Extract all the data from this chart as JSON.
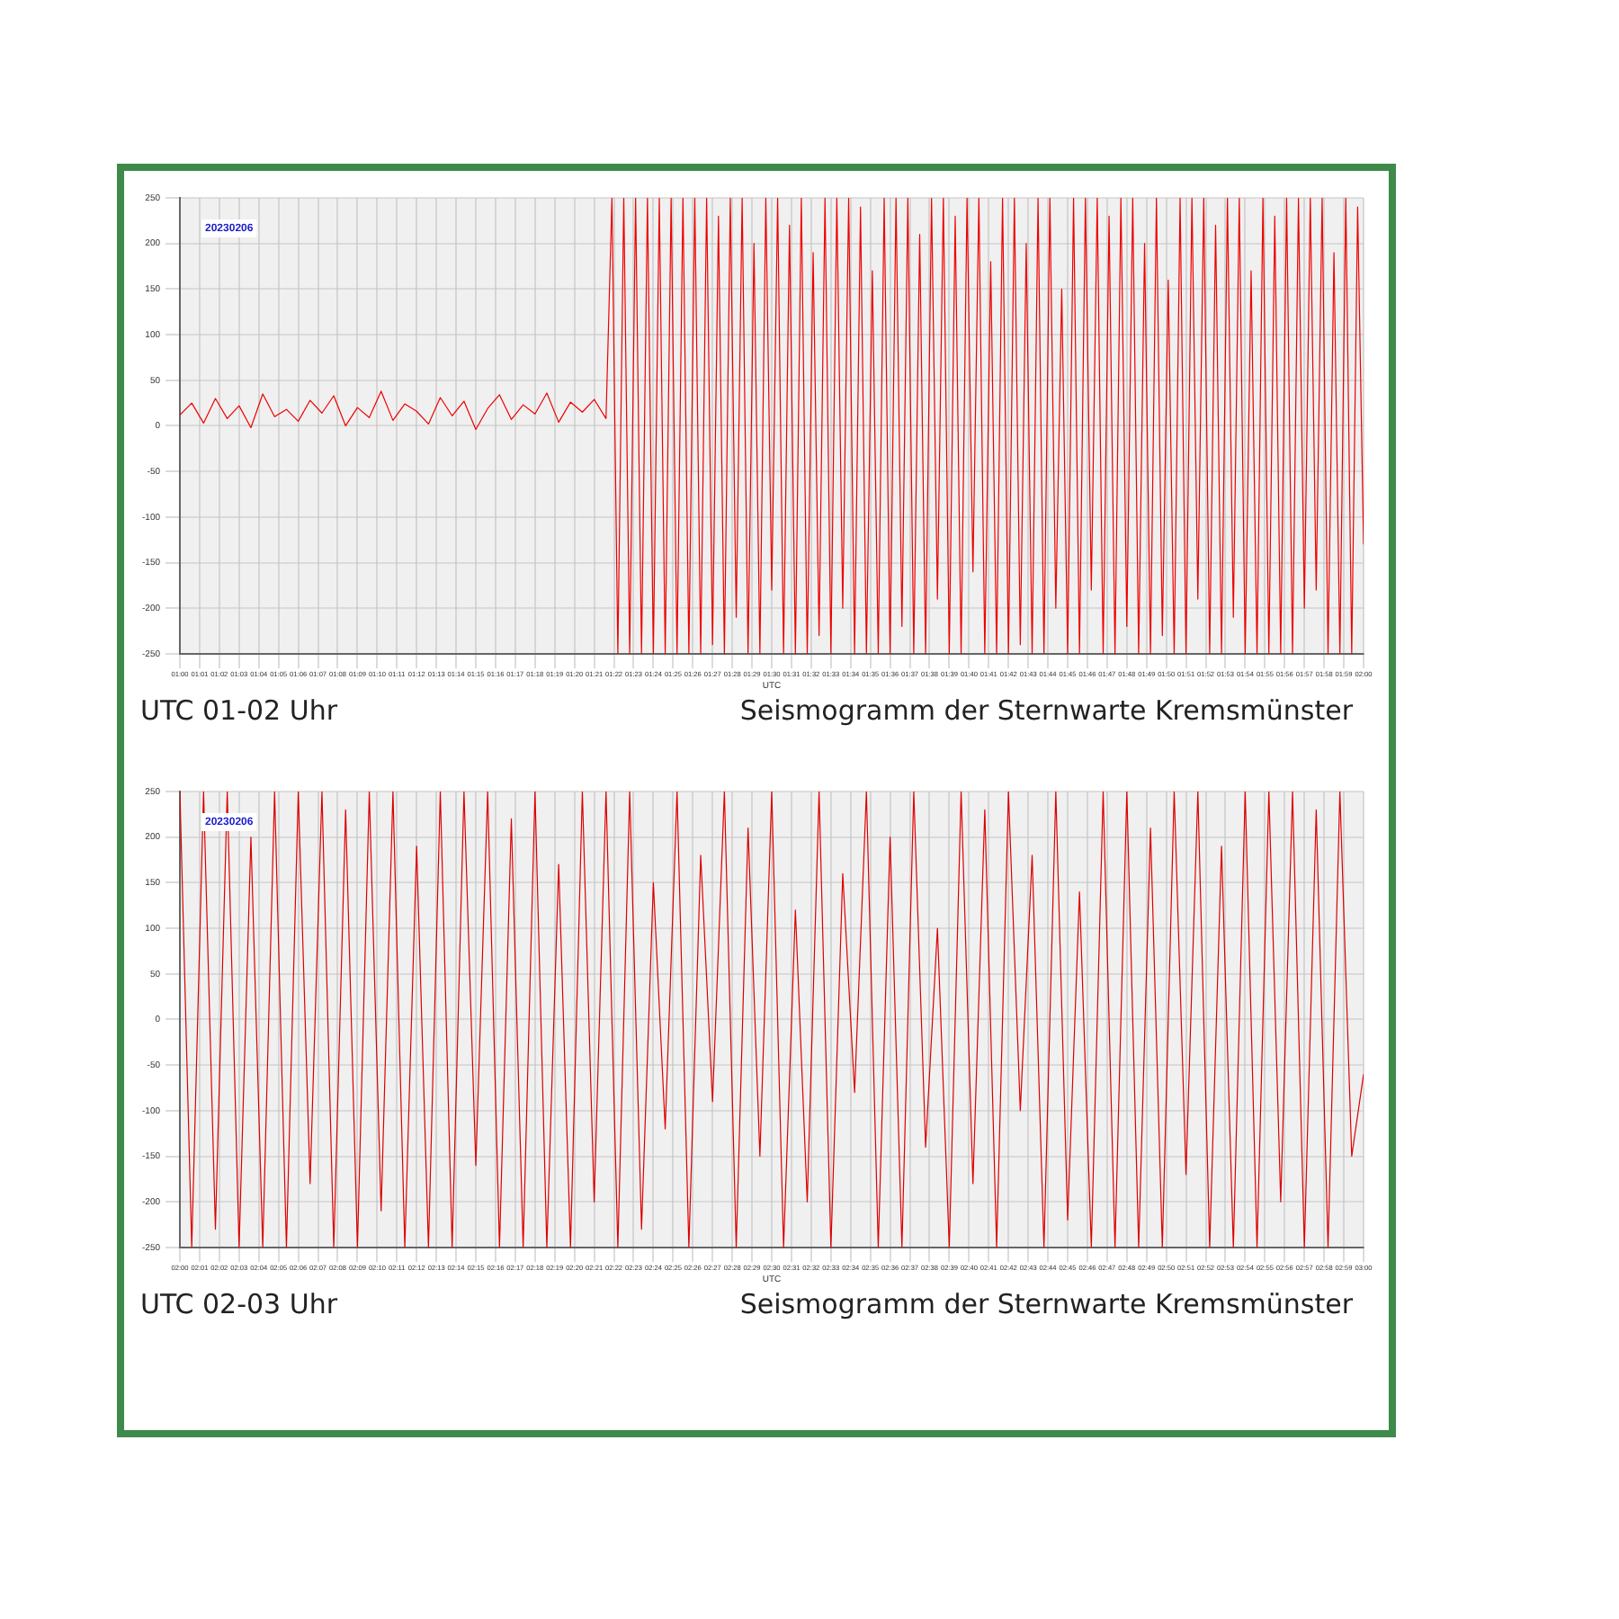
{
  "chart_data": [
    {
      "type": "line",
      "xlabel": "UTC",
      "annotations": [
        "20230206",
        "UTC 01-02 Uhr",
        "Seismogramm der Sternwarte Kremsmünster"
      ],
      "grid": true,
      "xlim": [
        1,
        2
      ],
      "ylim": [
        -250,
        250
      ],
      "yticks": [
        -250,
        -200,
        -150,
        -100,
        -50,
        0,
        50,
        100,
        150,
        200,
        250
      ],
      "xticks": [
        {
          "value": 1,
          "label": "01:00"
        },
        {
          "value": 1.0167,
          "label": "01:01"
        },
        {
          "value": 1.0333,
          "label": "01:02"
        },
        {
          "value": 1.05,
          "label": "01:03"
        },
        {
          "value": 1.0667,
          "label": "01:04"
        },
        {
          "value": 1.0833,
          "label": "01:05"
        },
        {
          "value": 1.1,
          "label": "01:06"
        },
        {
          "value": 1.1167,
          "label": "01:07"
        },
        {
          "value": 1.1333,
          "label": "01:08"
        },
        {
          "value": 1.15,
          "label": "01:09"
        },
        {
          "value": 1.1667,
          "label": "01:10"
        },
        {
          "value": 1.1833,
          "label": "01:11"
        },
        {
          "value": 1.2,
          "label": "01:12"
        },
        {
          "value": 1.2167,
          "label": "01:13"
        },
        {
          "value": 1.2333,
          "label": "01:14"
        },
        {
          "value": 1.25,
          "label": "01:15"
        },
        {
          "value": 1.2667,
          "label": "01:16"
        },
        {
          "value": 1.2833,
          "label": "01:17"
        },
        {
          "value": 1.3,
          "label": "01:18"
        },
        {
          "value": 1.3167,
          "label": "01:19"
        },
        {
          "value": 1.3333,
          "label": "01:20"
        },
        {
          "value": 1.35,
          "label": "01:21"
        },
        {
          "value": 1.3667,
          "label": "01:22"
        },
        {
          "value": 1.3833,
          "label": "01:23"
        },
        {
          "value": 1.4,
          "label": "01:24"
        },
        {
          "value": 1.4167,
          "label": "01:25"
        },
        {
          "value": 1.4333,
          "label": "01:26"
        },
        {
          "value": 1.45,
          "label": "01:27"
        },
        {
          "value": 1.4667,
          "label": "01:28"
        },
        {
          "value": 1.4833,
          "label": "01:29"
        },
        {
          "value": 1.5,
          "label": "01:30"
        },
        {
          "value": 1.5167,
          "label": "01:31"
        },
        {
          "value": 1.5333,
          "label": "01:32"
        },
        {
          "value": 1.55,
          "label": "01:33"
        },
        {
          "value": 1.5667,
          "label": "01:34"
        },
        {
          "value": 1.5833,
          "label": "01:35"
        },
        {
          "value": 1.6,
          "label": "01:36"
        },
        {
          "value": 1.6167,
          "label": "01:37"
        },
        {
          "value": 1.6333,
          "label": "01:38"
        },
        {
          "value": 1.65,
          "label": "01:39"
        },
        {
          "value": 1.6667,
          "label": "01:40"
        },
        {
          "value": 1.6833,
          "label": "01:41"
        },
        {
          "value": 1.7,
          "label": "01:42"
        },
        {
          "value": 1.7167,
          "label": "01:43"
        },
        {
          "value": 1.7333,
          "label": "01:44"
        },
        {
          "value": 1.75,
          "label": "01:45"
        },
        {
          "value": 1.7667,
          "label": "01:46"
        },
        {
          "value": 1.7833,
          "label": "01:47"
        },
        {
          "value": 1.8,
          "label": "01:48"
        },
        {
          "value": 1.8167,
          "label": "01:49"
        },
        {
          "value": 1.8333,
          "label": "01:50"
        },
        {
          "value": 1.85,
          "label": "01:51"
        },
        {
          "value": 1.8667,
          "label": "01:52"
        },
        {
          "value": 1.8833,
          "label": "01:53"
        },
        {
          "value": 1.9,
          "label": "01:54"
        },
        {
          "value": 1.9167,
          "label": "01:55"
        },
        {
          "value": 1.9333,
          "label": "01:56"
        },
        {
          "value": 1.95,
          "label": "01:57"
        },
        {
          "value": 1.9667,
          "label": "01:58"
        },
        {
          "value": 1.9833,
          "label": "01:59"
        },
        {
          "value": 2,
          "label": "02:00"
        }
      ],
      "series": [
        {
          "color": "#ee0000",
          "x": [
            1,
            1.01,
            1.02,
            1.03,
            1.04,
            1.05,
            1.06,
            1.07,
            1.08,
            1.09,
            1.1,
            1.11,
            1.12,
            1.13,
            1.14,
            1.15,
            1.16,
            1.17,
            1.18,
            1.19,
            1.2,
            1.21,
            1.22,
            1.23,
            1.24,
            1.25,
            1.26,
            1.27,
            1.28,
            1.29,
            1.3,
            1.31,
            1.32,
            1.33,
            1.34,
            1.35,
            1.36,
            1.365,
            1.37,
            1.375,
            1.38,
            1.385,
            1.39,
            1.395,
            1.4,
            1.405,
            1.41,
            1.415,
            1.42,
            1.425,
            1.43,
            1.435,
            1.44,
            1.445,
            1.45,
            1.455,
            1.46,
            1.465,
            1.47,
            1.475,
            1.48,
            1.485,
            1.49,
            1.495,
            1.5,
            1.505,
            1.51,
            1.515,
            1.52,
            1.525,
            1.53,
            1.535,
            1.54,
            1.545,
            1.55,
            1.555,
            1.56,
            1.565,
            1.57,
            1.575,
            1.58,
            1.585,
            1.59,
            1.595,
            1.6,
            1.605,
            1.61,
            1.615,
            1.62,
            1.625,
            1.63,
            1.635,
            1.64,
            1.645,
            1.65,
            1.655,
            1.66,
            1.665,
            1.67,
            1.675,
            1.68,
            1.685,
            1.69,
            1.695,
            1.7,
            1.705,
            1.71,
            1.715,
            1.72,
            1.725,
            1.73,
            1.735,
            1.74,
            1.745,
            1.75,
            1.755,
            1.76,
            1.765,
            1.77,
            1.775,
            1.78,
            1.785,
            1.79,
            1.795,
            1.8,
            1.805,
            1.81,
            1.815,
            1.82,
            1.825,
            1.83,
            1.835,
            1.84,
            1.845,
            1.85,
            1.855,
            1.86,
            1.865,
            1.87,
            1.875,
            1.88,
            1.885,
            1.89,
            1.895,
            1.9,
            1.905,
            1.91,
            1.915,
            1.92,
            1.925,
            1.93,
            1.935,
            1.94,
            1.945,
            1.95,
            1.955,
            1.96,
            1.965,
            1.97,
            1.975,
            1.98,
            1.985,
            1.99,
            1.995,
            2
          ],
          "values": [
            12,
            25,
            3,
            30,
            8,
            22,
            -2,
            35,
            10,
            18,
            5,
            28,
            14,
            33,
            0,
            20,
            9,
            38,
            6,
            24,
            16,
            2,
            31,
            11,
            27,
            -4,
            19,
            34,
            7,
            23,
            13,
            36,
            4,
            26,
            15,
            29,
            8,
            250,
            -250,
            250,
            -250,
            250,
            -250,
            250,
            -250,
            250,
            -250,
            250,
            -250,
            250,
            -250,
            250,
            -250,
            250,
            -240,
            230,
            -250,
            250,
            -210,
            250,
            -250,
            200,
            -250,
            250,
            -180,
            250,
            -250,
            220,
            -250,
            250,
            -250,
            190,
            -230,
            250,
            -250,
            250,
            -200,
            250,
            -250,
            240,
            -250,
            170,
            -250,
            250,
            -250,
            250,
            -220,
            250,
            -250,
            210,
            -250,
            250,
            -190,
            250,
            -250,
            230,
            -250,
            250,
            -160,
            250,
            -250,
            180,
            -250,
            250,
            -250,
            250,
            -240,
            200,
            -250,
            250,
            -250,
            250,
            -200,
            150,
            -250,
            250,
            -250,
            250,
            -180,
            250,
            -250,
            230,
            -250,
            250,
            -220,
            250,
            -250,
            200,
            -250,
            250,
            -230,
            160,
            -250,
            250,
            -250,
            250,
            -190,
            250,
            -250,
            220,
            -250,
            250,
            -210,
            250,
            -250,
            170,
            -250,
            250,
            -250,
            230,
            -250,
            250,
            -250,
            250,
            -200,
            250,
            -180,
            250,
            -250,
            190,
            -250,
            250,
            -250,
            240,
            -130
          ]
        }
      ]
    },
    {
      "type": "line",
      "xlabel": "UTC",
      "annotations": [
        "20230206",
        "UTC 02-03 Uhr",
        "Seismogramm der Sternwarte Kremsmünster"
      ],
      "grid": true,
      "xlim": [
        2,
        3
      ],
      "ylim": [
        -250,
        250
      ],
      "yticks": [
        -250,
        -200,
        -150,
        -100,
        -50,
        0,
        50,
        100,
        150,
        200,
        250
      ],
      "xticks": [
        {
          "value": 2,
          "label": "02:00"
        },
        {
          "value": 2.0167,
          "label": "02:01"
        },
        {
          "value": 2.0333,
          "label": "02:02"
        },
        {
          "value": 2.05,
          "label": "02:03"
        },
        {
          "value": 2.0667,
          "label": "02:04"
        },
        {
          "value": 2.0833,
          "label": "02:05"
        },
        {
          "value": 2.1,
          "label": "02:06"
        },
        {
          "value": 2.1167,
          "label": "02:07"
        },
        {
          "value": 2.1333,
          "label": "02:08"
        },
        {
          "value": 2.15,
          "label": "02:09"
        },
        {
          "value": 2.1667,
          "label": "02:10"
        },
        {
          "value": 2.1833,
          "label": "02:11"
        },
        {
          "value": 2.2,
          "label": "02:12"
        },
        {
          "value": 2.2167,
          "label": "02:13"
        },
        {
          "value": 2.2333,
          "label": "02:14"
        },
        {
          "value": 2.25,
          "label": "02:15"
        },
        {
          "value": 2.2667,
          "label": "02:16"
        },
        {
          "value": 2.2833,
          "label": "02:17"
        },
        {
          "value": 2.3,
          "label": "02:18"
        },
        {
          "value": 2.3167,
          "label": "02:19"
        },
        {
          "value": 2.3333,
          "label": "02:20"
        },
        {
          "value": 2.35,
          "label": "02:21"
        },
        {
          "value": 2.3667,
          "label": "02:22"
        },
        {
          "value": 2.3833,
          "label": "02:23"
        },
        {
          "value": 2.4,
          "label": "02:24"
        },
        {
          "value": 2.4167,
          "label": "02:25"
        },
        {
          "value": 2.4333,
          "label": "02:26"
        },
        {
          "value": 2.45,
          "label": "02:27"
        },
        {
          "value": 2.4667,
          "label": "02:28"
        },
        {
          "value": 2.4833,
          "label": "02:29"
        },
        {
          "value": 2.5,
          "label": "02:30"
        },
        {
          "value": 2.5167,
          "label": "02:31"
        },
        {
          "value": 2.5333,
          "label": "02:32"
        },
        {
          "value": 2.55,
          "label": "02:33"
        },
        {
          "value": 2.5667,
          "label": "02:34"
        },
        {
          "value": 2.5833,
          "label": "02:35"
        },
        {
          "value": 2.6,
          "label": "02:36"
        },
        {
          "value": 2.6167,
          "label": "02:37"
        },
        {
          "value": 2.6333,
          "label": "02:38"
        },
        {
          "value": 2.65,
          "label": "02:39"
        },
        {
          "value": 2.6667,
          "label": "02:40"
        },
        {
          "value": 2.6833,
          "label": "02:41"
        },
        {
          "value": 2.7,
          "label": "02:42"
        },
        {
          "value": 2.7167,
          "label": "02:43"
        },
        {
          "value": 2.7333,
          "label": "02:44"
        },
        {
          "value": 2.75,
          "label": "02:45"
        },
        {
          "value": 2.7667,
          "label": "02:46"
        },
        {
          "value": 2.7833,
          "label": "02:47"
        },
        {
          "value": 2.8,
          "label": "02:48"
        },
        {
          "value": 2.8167,
          "label": "02:49"
        },
        {
          "value": 2.8333,
          "label": "02:50"
        },
        {
          "value": 2.85,
          "label": "02:51"
        },
        {
          "value": 2.8667,
          "label": "02:52"
        },
        {
          "value": 2.8833,
          "label": "02:53"
        },
        {
          "value": 2.9,
          "label": "02:54"
        },
        {
          "value": 2.9167,
          "label": "02:55"
        },
        {
          "value": 2.9333,
          "label": "02:56"
        },
        {
          "value": 2.95,
          "label": "02:57"
        },
        {
          "value": 2.9667,
          "label": "02:58"
        },
        {
          "value": 2.9833,
          "label": "02:59"
        },
        {
          "value": 3,
          "label": "03:00"
        }
      ],
      "series": [
        {
          "color": "#dd0000",
          "x": [
            2,
            2.01,
            2.02,
            2.03,
            2.04,
            2.05,
            2.06,
            2.07,
            2.08,
            2.09,
            2.1,
            2.11,
            2.12,
            2.13,
            2.14,
            2.15,
            2.16,
            2.17,
            2.18,
            2.19,
            2.2,
            2.21,
            2.22,
            2.23,
            2.24,
            2.25,
            2.26,
            2.27,
            2.28,
            2.29,
            2.3,
            2.31,
            2.32,
            2.33,
            2.34,
            2.35,
            2.36,
            2.37,
            2.38,
            2.39,
            2.4,
            2.41,
            2.42,
            2.43,
            2.44,
            2.45,
            2.46,
            2.47,
            2.48,
            2.49,
            2.5,
            2.51,
            2.52,
            2.53,
            2.54,
            2.55,
            2.56,
            2.57,
            2.58,
            2.59,
            2.6,
            2.61,
            2.62,
            2.63,
            2.64,
            2.65,
            2.66,
            2.67,
            2.68,
            2.69,
            2.7,
            2.71,
            2.72,
            2.73,
            2.74,
            2.75,
            2.76,
            2.77,
            2.78,
            2.79,
            2.8,
            2.81,
            2.82,
            2.83,
            2.84,
            2.85,
            2.86,
            2.87,
            2.88,
            2.89,
            2.9,
            2.91,
            2.92,
            2.93,
            2.94,
            2.95,
            2.96,
            2.97,
            2.98,
            2.99,
            3
          ],
          "values": [
            250,
            -250,
            250,
            -230,
            250,
            -250,
            200,
            -250,
            250,
            -250,
            250,
            -180,
            250,
            -250,
            230,
            -250,
            250,
            -210,
            250,
            -250,
            190,
            -250,
            250,
            -250,
            250,
            -160,
            250,
            -250,
            220,
            -250,
            250,
            -250,
            170,
            -250,
            250,
            -200,
            250,
            -250,
            250,
            -230,
            150,
            -120,
            250,
            -250,
            180,
            -90,
            250,
            -250,
            210,
            -150,
            250,
            -250,
            120,
            -200,
            250,
            -250,
            160,
            -80,
            250,
            -250,
            200,
            -250,
            250,
            -140,
            100,
            -250,
            250,
            -180,
            230,
            -250,
            250,
            -100,
            180,
            -250,
            250,
            -220,
            140,
            -250,
            250,
            -250,
            250,
            -250,
            210,
            -250,
            250,
            -170,
            250,
            -250,
            190,
            -250,
            250,
            -250,
            250,
            -200,
            250,
            -250,
            230,
            -250,
            250,
            -150,
            -60
          ]
        }
      ]
    }
  ]
}
